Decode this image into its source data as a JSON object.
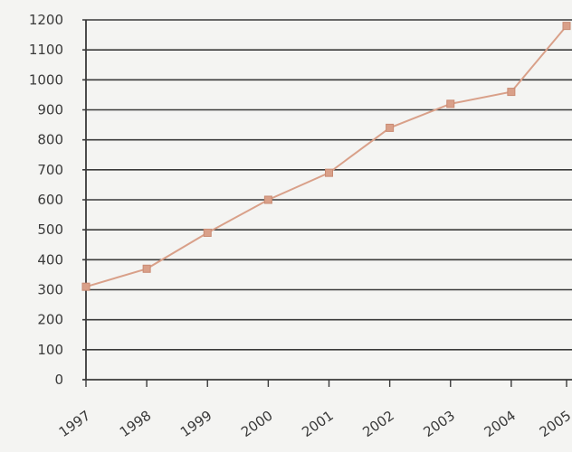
{
  "chart_data": {
    "type": "line",
    "title": "",
    "xlabel": "",
    "ylabel": "",
    "categories": [
      "1997",
      "1998",
      "1999",
      "2000",
      "2001",
      "2002",
      "2003",
      "2004",
      "2005"
    ],
    "series": [
      {
        "values": [
          310,
          370,
          490,
          600,
          690,
          840,
          920,
          960,
          1180
        ],
        "color": "#d9a089"
      }
    ],
    "ylim": [
      0,
      1200
    ],
    "yticks": [
      "0",
      "100",
      "200",
      "300",
      "400",
      "500",
      "600",
      "700",
      "800",
      "900",
      "1000",
      "1100",
      "1200"
    ],
    "grid": "horizontal",
    "legend": "none"
  }
}
